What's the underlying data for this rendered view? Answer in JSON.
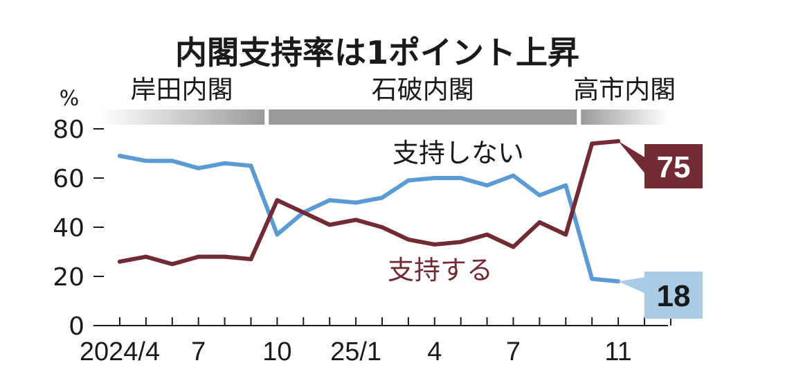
{
  "chart_data": {
    "type": "line",
    "title": "内閣支持率は1ポイント上昇",
    "ylabel": "%",
    "ylim": [
      0,
      80
    ],
    "yticks": [
      "0",
      "20",
      "40",
      "60",
      "80"
    ],
    "x_tick_labels": [
      {
        "index": 0,
        "label": "2024/4"
      },
      {
        "index": 3,
        "label": "7"
      },
      {
        "index": 6,
        "label": "10"
      },
      {
        "index": 9,
        "label": "25/1"
      },
      {
        "index": 12,
        "label": "4"
      },
      {
        "index": 15,
        "label": "7"
      },
      {
        "index": 19,
        "label": "11"
      }
    ],
    "cabinets": [
      {
        "label": "岸田内閣",
        "start_index": -0.8,
        "end_index": 5.6
      },
      {
        "label": "石破内閣",
        "start_index": 5.6,
        "end_index": 17.5
      },
      {
        "label": "高市内閣",
        "start_index": 17.5,
        "end_index": 20.9
      }
    ],
    "series": [
      {
        "name": "支持しない",
        "color": "#5b9bd5",
        "label_color": "#1a1a1a",
        "end_label": "18",
        "end_label_bg": "#a9cbe6",
        "end_label_fg": "#1a1a1a",
        "values": [
          {
            "x": 0,
            "y": 69
          },
          {
            "x": 1,
            "y": 67
          },
          {
            "x": 2,
            "y": 67
          },
          {
            "x": 3,
            "y": 64
          },
          {
            "x": 4,
            "y": 66
          },
          {
            "x": 5,
            "y": 65
          },
          {
            "x": 6,
            "y": 37
          },
          {
            "x": 7,
            "y": 46
          },
          {
            "x": 8,
            "y": 51
          },
          {
            "x": 9,
            "y": 50
          },
          {
            "x": 10,
            "y": 52
          },
          {
            "x": 11,
            "y": 59
          },
          {
            "x": 12,
            "y": 60
          },
          {
            "x": 13,
            "y": 60
          },
          {
            "x": 14,
            "y": 57
          },
          {
            "x": 15,
            "y": 61
          },
          {
            "x": 16,
            "y": 53
          },
          {
            "x": 17,
            "y": 57
          },
          {
            "x": 18,
            "y": 19
          },
          {
            "x": 19,
            "y": 18
          }
        ]
      },
      {
        "name": "支持する",
        "color": "#722a33",
        "label_color": "#722a33",
        "end_label": "75",
        "end_label_bg": "#722a33",
        "end_label_fg": "#ffffff",
        "values": [
          {
            "x": 0,
            "y": 26
          },
          {
            "x": 1,
            "y": 28
          },
          {
            "x": 2,
            "y": 25
          },
          {
            "x": 3,
            "y": 28
          },
          {
            "x": 4,
            "y": 28
          },
          {
            "x": 5,
            "y": 27
          },
          {
            "x": 6,
            "y": 51
          },
          {
            "x": 7,
            "y": 46
          },
          {
            "x": 8,
            "y": 41
          },
          {
            "x": 9,
            "y": 43
          },
          {
            "x": 10,
            "y": 40
          },
          {
            "x": 11,
            "y": 35
          },
          {
            "x": 12,
            "y": 33
          },
          {
            "x": 13,
            "y": 34
          },
          {
            "x": 14,
            "y": 37
          },
          {
            "x": 15,
            "y": 32
          },
          {
            "x": 16,
            "y": 42
          },
          {
            "x": 17,
            "y": 37
          },
          {
            "x": 18,
            "y": 74
          },
          {
            "x": 19,
            "y": 75
          }
        ]
      }
    ],
    "grid": false,
    "legend": "inline"
  }
}
